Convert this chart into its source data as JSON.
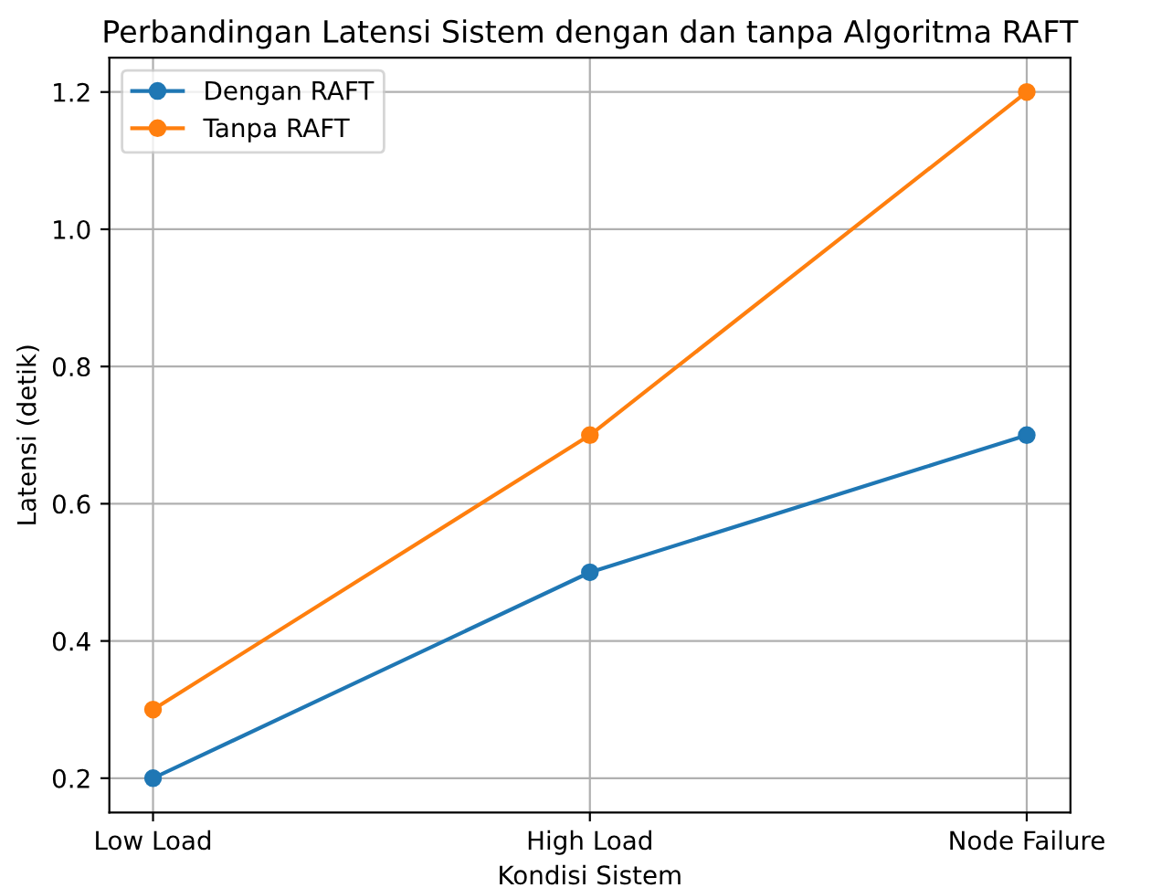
{
  "chart_data": {
    "type": "line",
    "title": "Perbandingan Latensi Sistem dengan dan tanpa Algoritma RAFT",
    "xlabel": "Kondisi Sistem",
    "ylabel": "Latensi (detik)",
    "categories": [
      "Low Load",
      "High Load",
      "Node Failure"
    ],
    "series": [
      {
        "name": "Dengan RAFT",
        "color": "#1f77b4",
        "values": [
          0.2,
          0.5,
          0.7
        ]
      },
      {
        "name": "Tanpa RAFT",
        "color": "#ff7f0e",
        "values": [
          0.3,
          0.7,
          1.2
        ]
      }
    ],
    "ylim": [
      0.15,
      1.25
    ],
    "yticks": [
      0.2,
      0.4,
      0.6,
      0.8,
      {
        "value": 1.0,
        "label": "1.0"
      },
      1.2
    ],
    "grid": true,
    "legend": "top left",
    "marker": "circle",
    "line_style": "solid"
  }
}
